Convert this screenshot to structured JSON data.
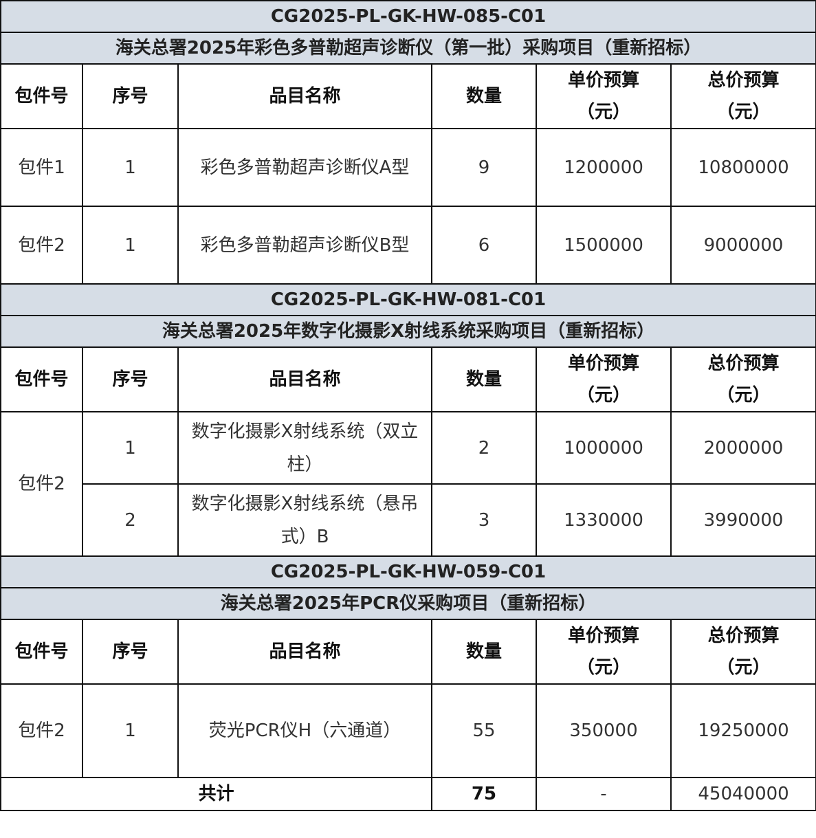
{
  "headers": {
    "package": "包件号",
    "seq": "序号",
    "item": "品目名称",
    "qty": "数量",
    "unit_price": "单价预算",
    "total_price": "总价预算",
    "unit": "（元）"
  },
  "sections": [
    {
      "code": "CG2025-PL-GK-HW-085-C01",
      "title": "海关总署2025年彩色多普勒超声诊断仪（第一批）采购项目（重新招标）",
      "rows": [
        {
          "package": "包件1",
          "seq": "1",
          "item": "彩色多普勒超声诊断仪A型",
          "qty": "9",
          "unit_price": "1200000",
          "total_price": "10800000"
        },
        {
          "package": "包件2",
          "seq": "1",
          "item": "彩色多普勒超声诊断仪B型",
          "qty": "6",
          "unit_price": "1500000",
          "total_price": "9000000"
        }
      ]
    },
    {
      "code": "CG2025-PL-GK-HW-081-C01",
      "title": "海关总署2025年数字化摄影X射线系统采购项目（重新招标）",
      "rows": [
        {
          "package": "包件2",
          "seq": "1",
          "item": "数字化摄影X射线系统（双立柱）",
          "qty": "2",
          "unit_price": "1000000",
          "total_price": "2000000"
        },
        {
          "seq": "2",
          "item": "数字化摄影X射线系统（悬吊式）B",
          "qty": "3",
          "unit_price": "1330000",
          "total_price": "3990000"
        }
      ]
    },
    {
      "code": "CG2025-PL-GK-HW-059-C01",
      "title": "海关总署2025年PCR仪采购项目（重新招标）",
      "rows": [
        {
          "package": "包件2",
          "seq": "1",
          "item": "荧光PCR仪H（六通道）",
          "qty": "55",
          "unit_price": "350000",
          "total_price": "19250000"
        }
      ]
    }
  ],
  "total": {
    "label": "共计",
    "qty": "75",
    "unit_price": "-",
    "total_price": "45040000"
  },
  "colors": {
    "band_bg": "#d6dde6",
    "border": "#111111"
  }
}
